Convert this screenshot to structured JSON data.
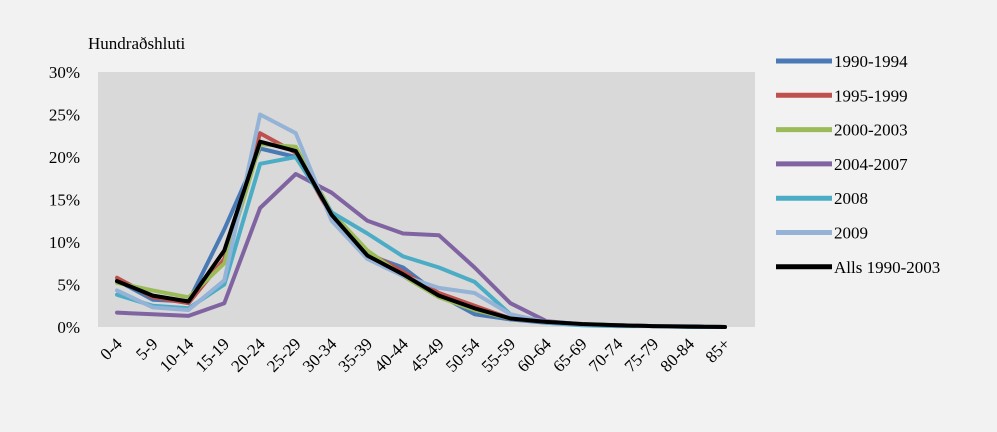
{
  "chart_data": {
    "type": "line",
    "ylabel": "Hundraðshluti",
    "ylim": [
      0,
      30
    ],
    "ytick_labels": [
      "0%",
      "5%",
      "10%",
      "15%",
      "20%",
      "25%",
      "30%"
    ],
    "ytick_values": [
      0,
      5,
      10,
      15,
      20,
      25,
      30
    ],
    "categories": [
      "0-4",
      "5-9",
      "10-14",
      "15-19",
      "20-24",
      "25-29",
      "30-34",
      "35-39",
      "40-44",
      "45-49",
      "50-54",
      "55-59",
      "60-64",
      "65-69",
      "70-74",
      "75-79",
      "80-84",
      "85+"
    ],
    "grid": false,
    "legend": "right",
    "series": [
      {
        "name": "1990-1994",
        "color": "#4a7ab5",
        "values": [
          5.5,
          3.2,
          3.0,
          11.5,
          21.0,
          20.0,
          13.5,
          8.5,
          7.0,
          3.8,
          1.5,
          0.9,
          0.5,
          0.3,
          0.2,
          0.1,
          0.1,
          0.0
        ]
      },
      {
        "name": "1995-1999",
        "color": "#c0504d",
        "values": [
          5.8,
          3.5,
          2.8,
          8.0,
          22.8,
          20.5,
          13.0,
          8.8,
          6.5,
          4.0,
          2.5,
          1.0,
          0.6,
          0.3,
          0.2,
          0.1,
          0.1,
          0.0
        ]
      },
      {
        "name": "2000-2003",
        "color": "#9bbb59",
        "values": [
          5.2,
          4.3,
          3.5,
          7.5,
          21.5,
          21.2,
          13.5,
          9.0,
          6.0,
          3.5,
          2.0,
          1.0,
          0.6,
          0.3,
          0.2,
          0.1,
          0.1,
          0.0
        ]
      },
      {
        "name": "2004-2007",
        "color": "#8064a2",
        "values": [
          1.7,
          1.5,
          1.3,
          2.8,
          14.0,
          18.0,
          15.8,
          12.5,
          11.0,
          10.8,
          7.0,
          2.8,
          0.7,
          0.3,
          0.2,
          0.1,
          0.1,
          0.0
        ]
      },
      {
        "name": "2008",
        "color": "#4bacc6",
        "values": [
          3.8,
          2.5,
          2.2,
          5.0,
          19.2,
          20.0,
          13.5,
          11.0,
          8.3,
          7.0,
          5.3,
          1.5,
          0.5,
          0.2,
          0.1,
          0.1,
          0.0,
          0.0
        ]
      },
      {
        "name": "2009",
        "color": "#95b3d7",
        "values": [
          4.3,
          2.3,
          2.0,
          5.5,
          25.0,
          22.8,
          12.5,
          8.0,
          6.0,
          4.6,
          4.0,
          1.5,
          0.6,
          0.3,
          0.2,
          0.1,
          0.1,
          0.0
        ]
      },
      {
        "name": "Alls 1990-2003",
        "color": "#000000",
        "values": [
          5.4,
          3.7,
          3.0,
          9.0,
          21.8,
          20.7,
          13.2,
          8.4,
          6.2,
          3.7,
          2.2,
          1.0,
          0.6,
          0.35,
          0.2,
          0.1,
          0.05,
          0.0
        ]
      }
    ]
  }
}
